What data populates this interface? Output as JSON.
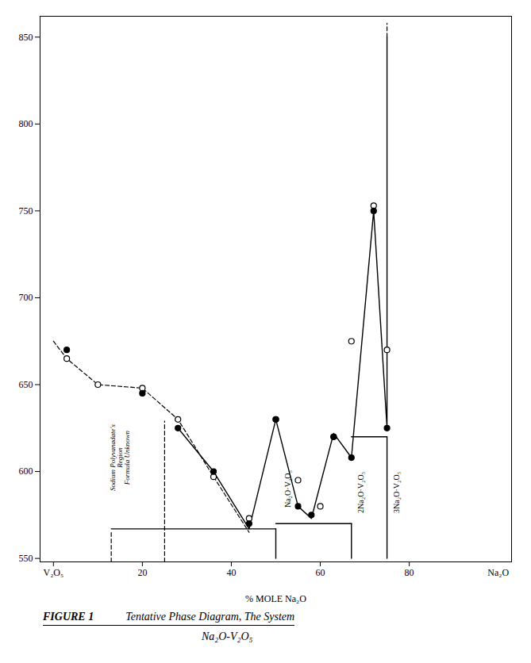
{
  "chart_data": {
    "type": "line",
    "xlabel": "% MOLE Na₂O",
    "xlim": [
      -3,
      103
    ],
    "ylim": [
      548,
      862
    ],
    "xticks": [
      {
        "value": 0,
        "label": null
      },
      20,
      40,
      60,
      80
    ],
    "yticks": [
      550,
      600,
      650,
      700,
      750,
      800,
      850
    ],
    "series": [
      {
        "type": "line",
        "line_style": "dashed",
        "x": [
          0,
          3,
          10,
          20,
          28,
          36,
          44
        ],
        "values": [
          675,
          665,
          650,
          648,
          630,
          597,
          565
        ]
      },
      {
        "type": "line",
        "line_style": "solid",
        "x": [
          28,
          36,
          44,
          50,
          55,
          58,
          63,
          67,
          72,
          75,
          75
        ],
        "values": [
          625,
          600,
          567,
          630,
          580,
          573,
          622,
          608,
          750,
          625,
          850
        ]
      },
      {
        "type": "line",
        "line_style": "dashed",
        "x": [
          75,
          75
        ],
        "values": [
          850,
          858
        ]
      },
      {
        "type": "line",
        "line_style": "solid",
        "x": [
          13,
          50
        ],
        "values": [
          567,
          567
        ]
      },
      {
        "type": "line",
        "line_style": "solid",
        "x": [
          50,
          67
        ],
        "values": [
          570,
          570
        ]
      },
      {
        "type": "line",
        "line_style": "solid",
        "x": [
          67,
          75
        ],
        "values": [
          620,
          620
        ]
      },
      {
        "type": "line",
        "line_style": "dashed",
        "x": [
          13,
          13
        ],
        "values": [
          548,
          565.22
        ]
      },
      {
        "type": "line",
        "line_style": "dashed",
        "x": [
          25,
          25
        ],
        "values": [
          548,
          629.03
        ]
      },
      {
        "type": "line",
        "line_style": "solid",
        "x": [
          50,
          50
        ],
        "values": [
          550,
          567
        ]
      },
      {
        "type": "line",
        "line_style": "solid",
        "x": [
          67,
          67
        ],
        "values": [
          550,
          570
        ]
      },
      {
        "type": "line",
        "line_style": "solid",
        "x": [
          75,
          75
        ],
        "values": [
          550,
          620
        ]
      },
      {
        "type": "scatter",
        "marker": "open_circle",
        "x": [
          3,
          10,
          20,
          28,
          36,
          44,
          50,
          55,
          60,
          63,
          67,
          72,
          75
        ],
        "values": [
          665,
          650,
          648,
          630,
          597,
          573,
          630,
          595,
          580,
          620,
          675,
          753,
          670
        ]
      },
      {
        "type": "scatter",
        "marker": "filled_circle",
        "x": [
          3,
          20,
          28,
          36,
          44,
          50,
          55,
          58,
          63,
          67,
          72,
          75
        ],
        "values": [
          670,
          645,
          625,
          600,
          570,
          630,
          580,
          575,
          620,
          608,
          750,
          625
        ]
      }
    ],
    "annotations": [
      {
        "text": "Sodium Polyvanadate's\nRegion\nFormula Unknown",
        "x": 15,
        "y": 608
      },
      {
        "text": "Na₂O·V₂O₅",
        "x": 52,
        "y": 590
      },
      {
        "text": "2Na₂O·V₂O₅",
        "x": 68.5,
        "y": 588
      },
      {
        "text": "3Na₂O·V₂O₅",
        "x": 76.5,
        "y": 588
      }
    ],
    "axis_end_labels": [
      {
        "x": 0,
        "text": "V₂O₅"
      },
      {
        "x": 100,
        "text": "Na₂O"
      }
    ],
    "caption": [
      "FIGURE 1",
      "Tentative Phase Diagram, The System",
      "Na₂O-V₂O₅"
    ]
  }
}
